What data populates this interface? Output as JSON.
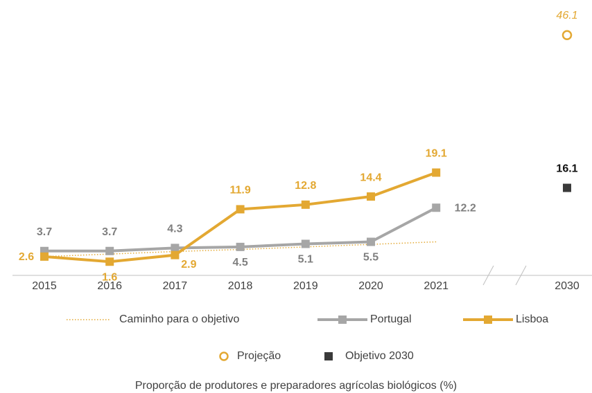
{
  "chart_data": {
    "type": "line",
    "categories": [
      "2015",
      "2016",
      "2017",
      "2018",
      "2019",
      "2020",
      "2021",
      "2030"
    ],
    "series": [
      {
        "name": "Caminho para o objetivo",
        "color": "#E3A832",
        "style": "dotted",
        "values": [
          2.6,
          3.1,
          3.6,
          4.0,
          4.5,
          5.0,
          5.5,
          null
        ]
      },
      {
        "name": "Portugal",
        "color": "#A6A6A6",
        "style": "line-square",
        "label_color": "#7F7F7F",
        "values": [
          3.7,
          3.7,
          4.3,
          4.5,
          5.1,
          5.5,
          12.2,
          null
        ]
      },
      {
        "name": "Lisboa",
        "color": "#E3A832",
        "style": "line-square",
        "label_color": "#E3A832",
        "values": [
          2.6,
          1.6,
          2.9,
          11.9,
          12.8,
          14.4,
          19.1,
          null
        ]
      },
      {
        "name": "Projeção",
        "color": "#E3A832",
        "style": "hollow-circle",
        "label_color": "#E3A832",
        "values": [
          null,
          null,
          null,
          null,
          null,
          null,
          null,
          46.1
        ]
      },
      {
        "name": "Objetivo 2030",
        "color": "#3A3A3A",
        "style": "square",
        "label_color": "#111111",
        "values": [
          null,
          null,
          null,
          null,
          null,
          null,
          null,
          16.1
        ]
      }
    ],
    "ylim": [
      0,
      53
    ],
    "caption": "Proporção de produtores e preparadores agrícolas biológicos (%)"
  }
}
